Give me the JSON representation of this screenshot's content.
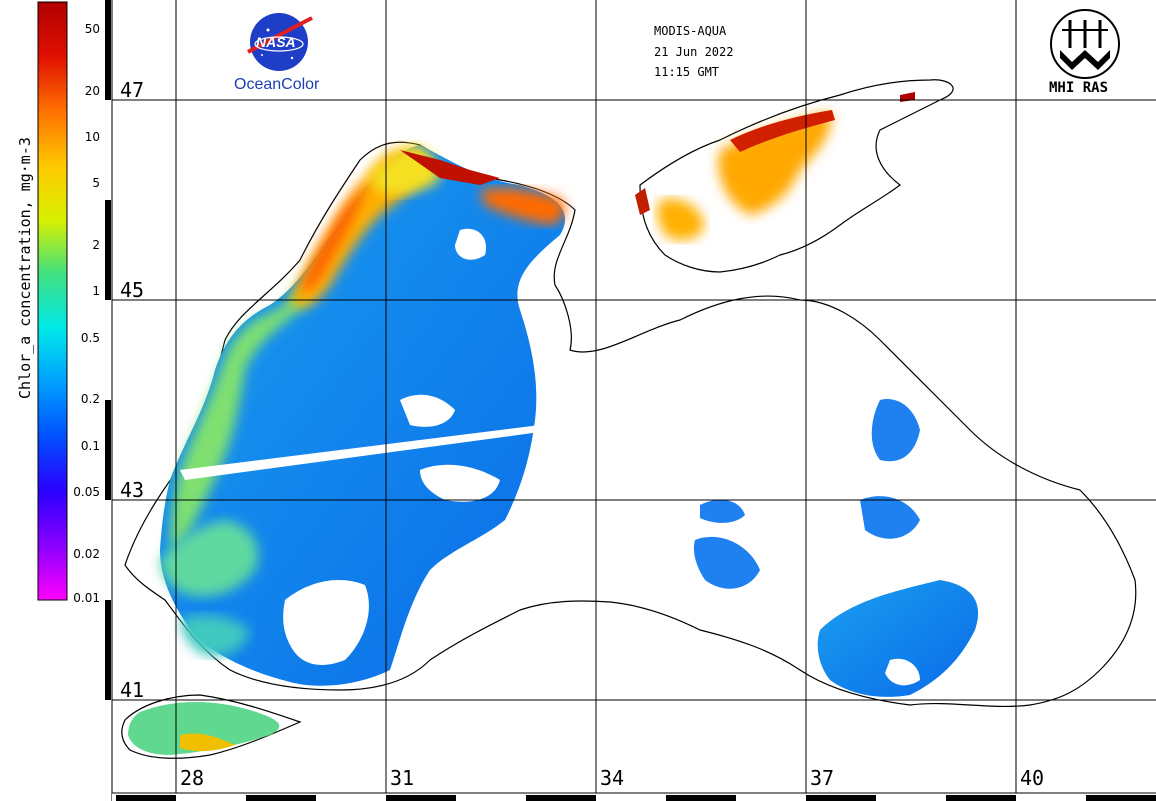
{
  "header": {
    "sensor": "MODIS-AQUA",
    "date": "21 Jun 2022",
    "time": "11:15 GMT"
  },
  "logos": {
    "nasa_text": "NASA",
    "oceancolor": "OceanColor",
    "mhi": "MHI RAS"
  },
  "colorbar": {
    "title": "Chlor_a concentration, mg·m-3",
    "ticks": [
      "50",
      "20",
      "10",
      "5",
      "2",
      "1",
      "0.5",
      "0.2",
      "0.1",
      "0.05",
      "0.02",
      "0.01"
    ],
    "colors": [
      "#ff00ff",
      "#8a00ff",
      "#2a00ff",
      "#0050ff",
      "#00a0ff",
      "#00e8e8",
      "#40e080",
      "#d8f000",
      "#ffc800",
      "#ff7000",
      "#e01000",
      "#b00000"
    ],
    "scale": "log"
  },
  "grid": {
    "latitudes": [
      "47",
      "45",
      "43",
      "41"
    ],
    "longitudes": [
      "28",
      "31",
      "34",
      "37",
      "40"
    ]
  }
}
